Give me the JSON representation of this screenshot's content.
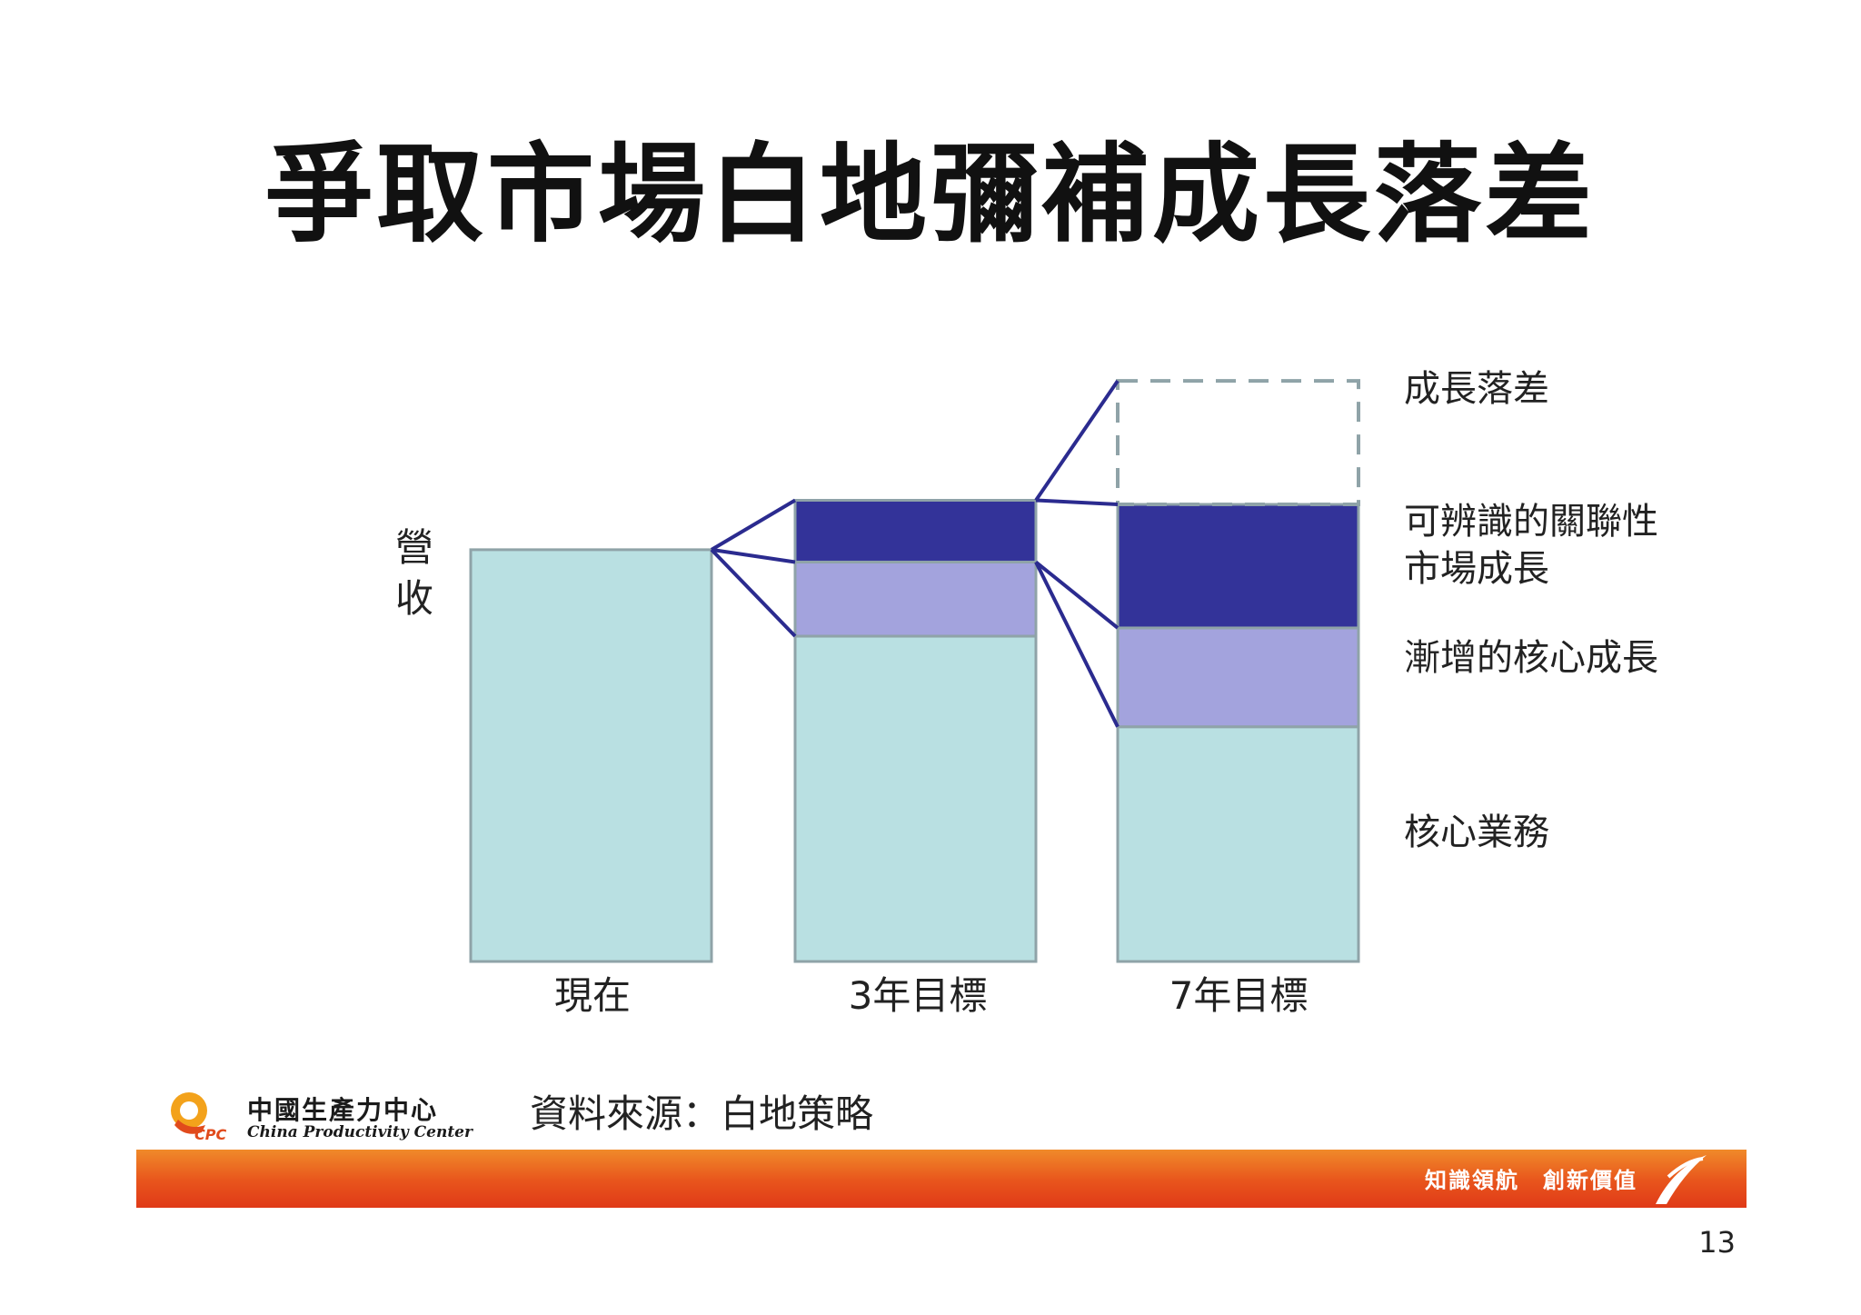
{
  "title": "爭取市場白地彌補成長落差",
  "chart_data": {
    "type": "bar",
    "stacked": true,
    "ylabel": "營收",
    "categories": [
      "現在",
      "3年目標",
      "7年目標"
    ],
    "series": [
      {
        "name": "核心業務",
        "values": [
          100,
          79,
          57
        ],
        "color": "#b9e0e2"
      },
      {
        "name": "漸增的核心成長",
        "values": [
          0,
          18,
          24
        ],
        "color": "#a3a3dd"
      },
      {
        "name": "可辨識的關聯性市場成長",
        "values": [
          0,
          15,
          30
        ],
        "color": "#333399"
      },
      {
        "name": "成長落差",
        "values": [
          0,
          0,
          30
        ],
        "color": "none",
        "dashed": true
      }
    ],
    "ylim": [
      0,
      160
    ],
    "grid": false,
    "legend": "right",
    "segment_labels": [
      {
        "key": "gap",
        "lines": [
          "成長落差"
        ]
      },
      {
        "key": "related",
        "lines": [
          "可辨識的關聯性",
          "市場成長"
        ]
      },
      {
        "key": "incremental",
        "lines": [
          "漸增的核心成長"
        ]
      },
      {
        "key": "core",
        "lines": [
          "核心業務"
        ]
      }
    ]
  },
  "source": "資料來源：白地策略",
  "logo": {
    "cn": "中國生產力中心",
    "en": "China Productivity Center",
    "mark": "CPC"
  },
  "slogan": "知識領航　創新價值",
  "page_number": "13"
}
